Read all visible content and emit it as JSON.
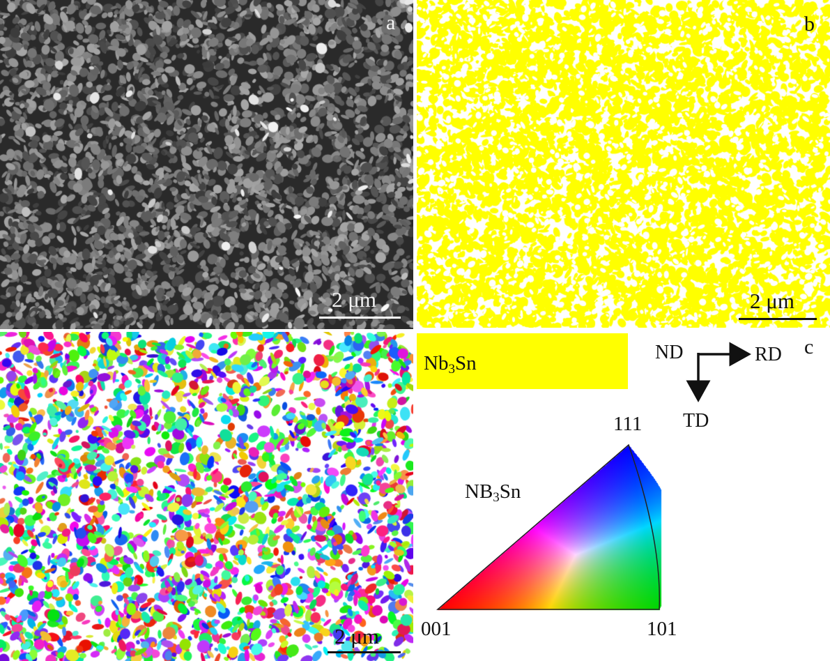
{
  "panels": {
    "a": {
      "letter": "a",
      "scalebar": "2 μm"
    },
    "b": {
      "letter": "b",
      "scalebar": "2 μm"
    },
    "c": {
      "scalebar": "2 μm"
    },
    "d": {
      "letter": "c"
    }
  },
  "legend": {
    "phase_base": "Nb",
    "phase_sub": "3",
    "phase_tail": "Sn",
    "phase_color": "#ffff00"
  },
  "axes": {
    "nd": "ND",
    "rd": "RD",
    "td": "TD"
  },
  "ipf": {
    "title_base": "NB",
    "title_sub": "3",
    "title_tail": "Sn",
    "pole_001": "001",
    "pole_101": "101",
    "pole_111": "111"
  },
  "colors": {
    "sem_background": "#2a2a2a",
    "phase_map_yellow": "#ffff00",
    "ipf_red": "#ff0000",
    "ipf_green": "#00d000",
    "ipf_blue": "#0000ff"
  }
}
